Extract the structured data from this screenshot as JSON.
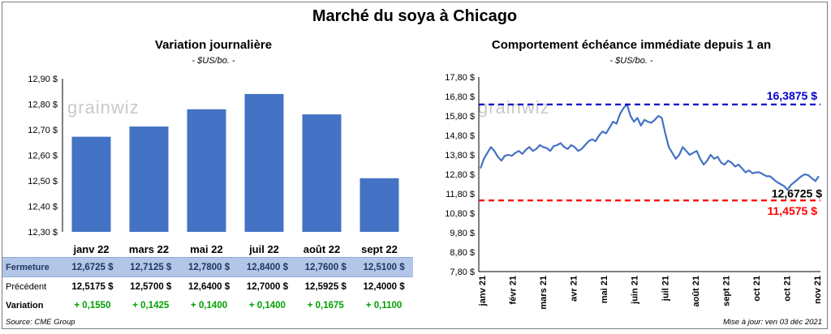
{
  "title": "Marché du soya à Chicago",
  "left": {
    "subtitle": "Variation  journalière",
    "unit": "- $US/bo. -",
    "watermark": "grainwiz"
  },
  "right": {
    "subtitle": "Comportement  échéance immédiate depuis 1 an",
    "unit": "- $US/bo. -",
    "watermark": "grainwiz",
    "labels": {
      "high": "16,3875 $",
      "last": "12,6725 $",
      "low": "11,4575 $"
    }
  },
  "table": {
    "rows": [
      {
        "label": "Fermeture",
        "values": [
          "12,6725  $",
          "12,7125  $",
          "12,7800  $",
          "12,8400  $",
          "12,7600  $",
          "12,5100  $"
        ]
      },
      {
        "label": "Précédent",
        "values": [
          "12,5175  $",
          "12,5700  $",
          "12,6400  $",
          "12,7000  $",
          "12,5925  $",
          "12,4000  $"
        ]
      },
      {
        "label": "Variation",
        "values": [
          "+ 0,1550",
          "+ 0,1425",
          "+ 0,1400",
          "+ 0,1400",
          "+ 0,1675",
          "+ 0,1100"
        ]
      }
    ]
  },
  "footer": {
    "source": "Source: CME Group",
    "update": "Mise à jour: ven 03 déc 2021"
  },
  "chart_data": [
    {
      "type": "bar",
      "title": "Variation  journalière",
      "categories": [
        "janv 22",
        "mars 22",
        "mai 22",
        "juil 22",
        "août 22",
        "sept 22"
      ],
      "values": [
        12.6725,
        12.7125,
        12.78,
        12.84,
        12.76,
        12.51
      ],
      "ylim": [
        12.3,
        12.9
      ],
      "yticks": [
        "12,30 $",
        "12,40 $",
        "12,50 $",
        "12,60 $",
        "12,70 $",
        "12,80 $",
        "12,90 $"
      ],
      "color": "#4472c4",
      "grid": false
    },
    {
      "type": "line",
      "title": "Comportement  échéance immédiate depuis 1 an",
      "xticks": [
        "janv 21",
        "févr 21",
        "mars 21",
        "avr 21",
        "mai 21",
        "juin 21",
        "juil 21",
        "août 21",
        "sept 21",
        "oct 21",
        "oct 21",
        "nov 21"
      ],
      "ylim": [
        7.8,
        17.8
      ],
      "yticks": [
        "7,80 $",
        "8,80 $",
        "9,80 $",
        "10,80 $",
        "11,80 $",
        "12,80 $",
        "13,80 $",
        "14,80 $",
        "15,80 $",
        "16,80 $",
        "17,80 $"
      ],
      "y": [
        13.1,
        13.6,
        13.9,
        14.2,
        14.0,
        13.7,
        13.5,
        13.75,
        13.8,
        13.75,
        13.9,
        14.0,
        13.85,
        14.05,
        14.2,
        14.0,
        14.1,
        14.3,
        14.2,
        14.15,
        14.0,
        14.25,
        14.3,
        14.4,
        14.2,
        14.1,
        14.3,
        14.2,
        14.0,
        14.1,
        14.3,
        14.5,
        14.6,
        14.5,
        14.8,
        15.0,
        14.9,
        15.2,
        15.5,
        15.4,
        15.9,
        16.2,
        16.39,
        15.8,
        15.5,
        15.7,
        15.3,
        15.6,
        15.5,
        15.45,
        15.6,
        15.8,
        15.7,
        14.9,
        14.2,
        13.9,
        13.6,
        13.8,
        14.2,
        14.0,
        13.8,
        13.9,
        14.0,
        13.6,
        13.3,
        13.5,
        13.8,
        13.6,
        13.7,
        13.4,
        13.3,
        13.5,
        13.4,
        13.2,
        13.3,
        13.1,
        12.9,
        13.0,
        12.85,
        12.9,
        12.9,
        12.8,
        12.7,
        12.7,
        12.55,
        12.4,
        12.3,
        12.2,
        12.0,
        12.25,
        12.4,
        12.55,
        12.7,
        12.8,
        12.75,
        12.6,
        12.45,
        12.7
      ],
      "lines": [
        {
          "value": 16.3875,
          "color": "#0000cc",
          "style": "dashed"
        },
        {
          "value": 11.4575,
          "color": "#ff0000",
          "style": "dashed"
        }
      ],
      "color": "#4472c4",
      "grid": false
    }
  ]
}
